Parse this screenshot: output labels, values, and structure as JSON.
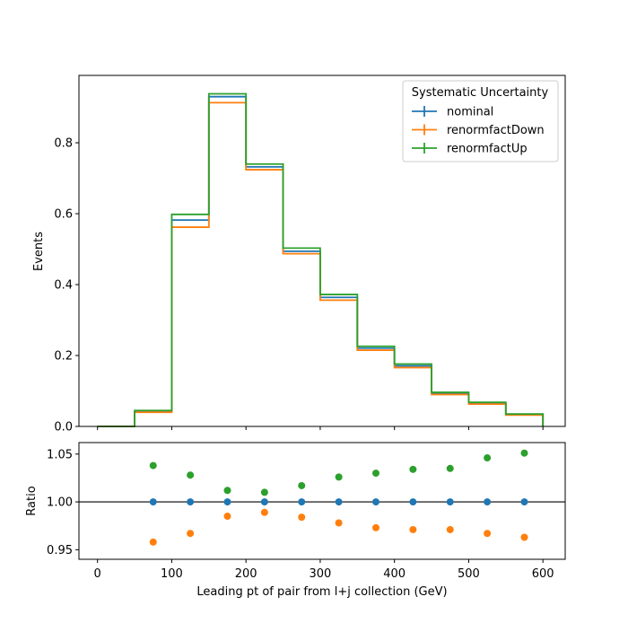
{
  "chart_data": [
    {
      "type": "step",
      "panel": "main",
      "xlabel": "",
      "ylabel": "Events",
      "xlim": [
        -25,
        630
      ],
      "ylim": [
        0,
        0.99
      ],
      "yticks": [
        0.0,
        0.2,
        0.4,
        0.6,
        0.8
      ],
      "ytick_labels": [
        "0.0",
        "0.2",
        "0.4",
        "0.6",
        "0.8"
      ],
      "bin_edges": [
        0,
        50,
        100,
        150,
        200,
        250,
        300,
        350,
        400,
        450,
        500,
        550,
        600
      ],
      "legend": {
        "title": "Systematic Uncertainty",
        "placement": "top-right"
      },
      "series": [
        {
          "name": "nominal",
          "color": "#1f77b4",
          "values": [
            0.0,
            0.043,
            0.582,
            0.93,
            0.732,
            0.494,
            0.364,
            0.221,
            0.171,
            0.093,
            0.065,
            0.034
          ]
        },
        {
          "name": "renormfactDown",
          "color": "#ff7f0e",
          "values": [
            0.0,
            0.04,
            0.562,
            0.913,
            0.724,
            0.487,
            0.356,
            0.215,
            0.166,
            0.09,
            0.063,
            0.032
          ]
        },
        {
          "name": "renormfactUp",
          "color": "#2ca02c",
          "values": [
            0.0,
            0.045,
            0.598,
            0.938,
            0.74,
            0.503,
            0.372,
            0.226,
            0.176,
            0.096,
            0.068,
            0.035
          ]
        }
      ]
    },
    {
      "type": "scatter",
      "panel": "ratio",
      "xlabel": "Leading pt of pair from l+j collection (GeV)",
      "ylabel": "Ratio",
      "xlim": [
        -25,
        630
      ],
      "ylim": [
        0.94,
        1.062
      ],
      "xticks": [
        0,
        100,
        200,
        300,
        400,
        500,
        600
      ],
      "xtick_labels": [
        "0",
        "100",
        "200",
        "300",
        "400",
        "500",
        "600"
      ],
      "yticks": [
        0.95,
        1.0,
        1.05
      ],
      "ytick_labels": [
        "0.95",
        "1.00",
        "1.05"
      ],
      "reference_line": 1.0,
      "x": [
        75,
        125,
        175,
        225,
        275,
        325,
        375,
        425,
        475,
        525,
        575
      ],
      "series": [
        {
          "name": "nominal",
          "color": "#1f77b4",
          "values": [
            1.0,
            1.0,
            1.0,
            1.0,
            1.0,
            1.0,
            1.0,
            1.0,
            1.0,
            1.0,
            1.0
          ]
        },
        {
          "name": "renormfactDown",
          "color": "#ff7f0e",
          "values": [
            0.958,
            0.967,
            0.985,
            0.989,
            0.984,
            0.978,
            0.973,
            0.971,
            0.971,
            0.967,
            0.963
          ]
        },
        {
          "name": "renormfactUp",
          "color": "#2ca02c",
          "values": [
            1.038,
            1.028,
            1.012,
            1.01,
            1.017,
            1.026,
            1.03,
            1.034,
            1.035,
            1.046,
            1.051
          ]
        }
      ]
    }
  ]
}
